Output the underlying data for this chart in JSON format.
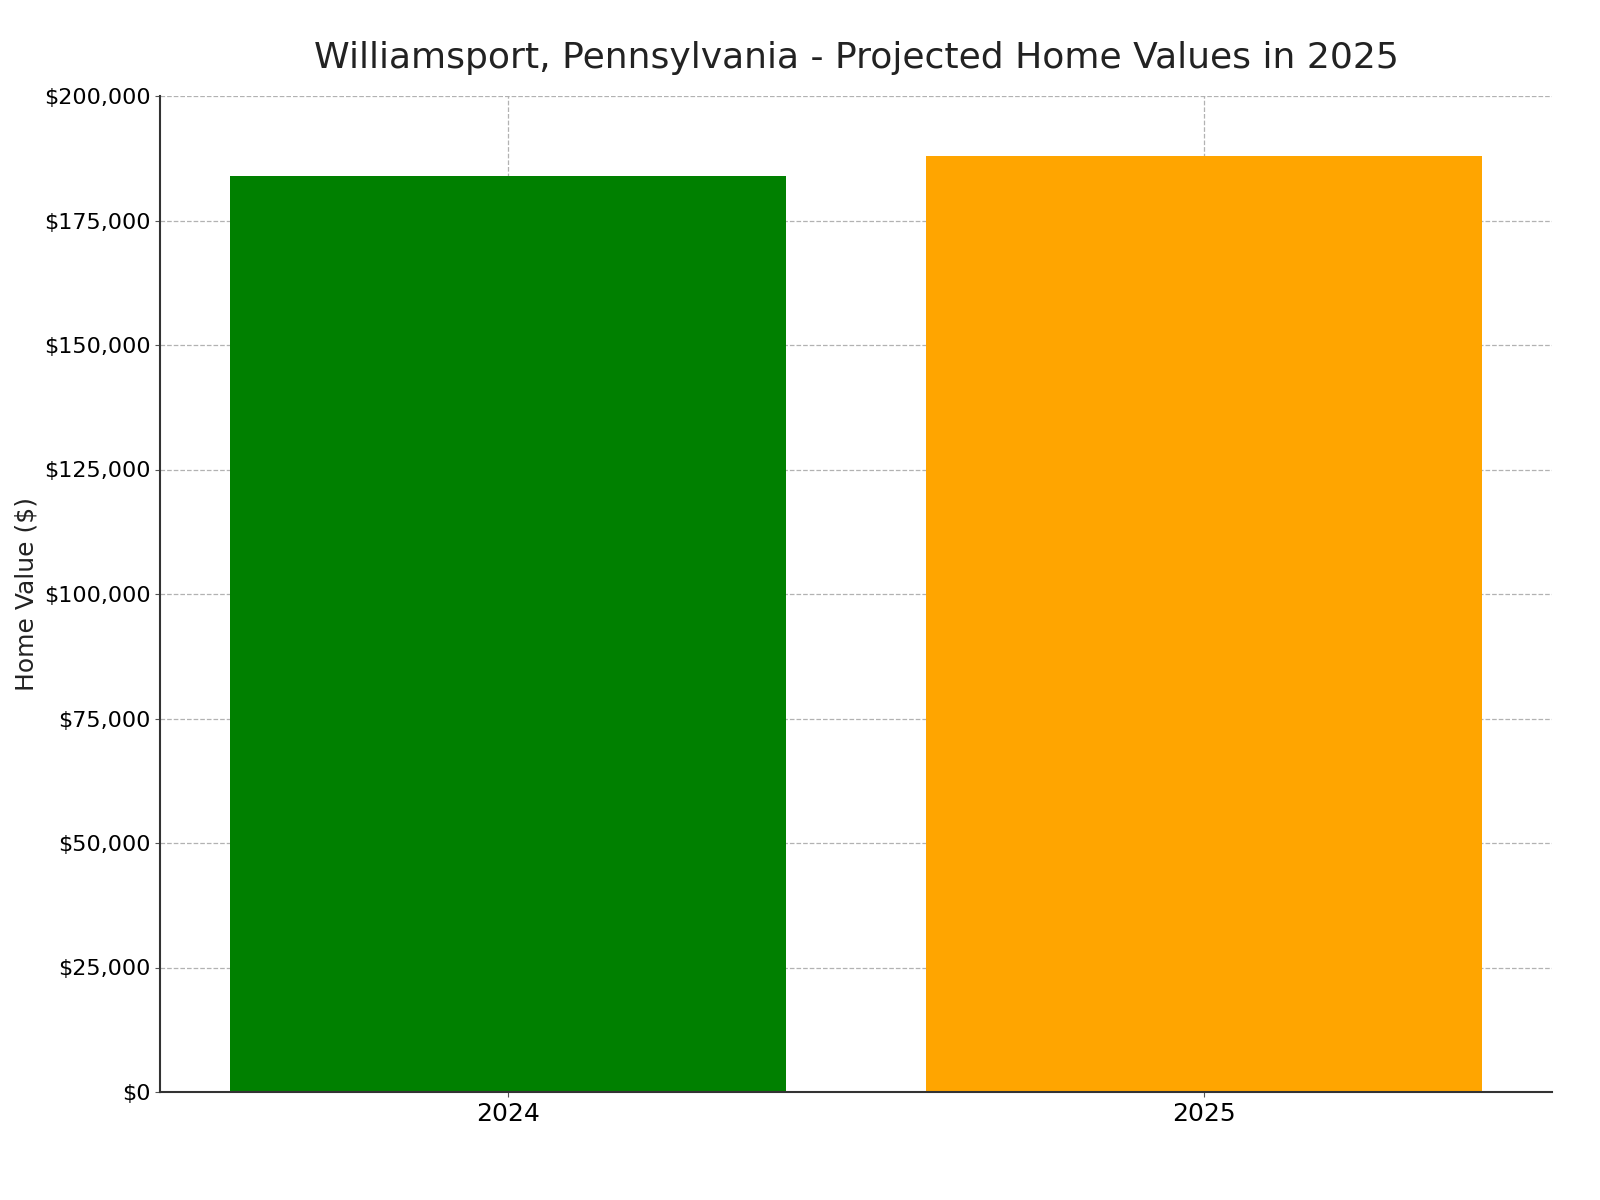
{
  "title": "Williamsport, Pennsylvania - Projected Home Values in 2025",
  "categories": [
    "2024",
    "2025"
  ],
  "values": [
    184000,
    188000
  ],
  "bar_colors": [
    "#008000",
    "#FFA500"
  ],
  "ylabel": "Home Value ($)",
  "xlabel": "",
  "ylim": [
    0,
    200000
  ],
  "yticks": [
    0,
    25000,
    50000,
    75000,
    100000,
    125000,
    150000,
    175000,
    200000
  ],
  "title_fontsize": 26,
  "axis_label_fontsize": 18,
  "tick_fontsize": 16,
  "bar_width": 0.8,
  "background_color": "#ffffff",
  "grid_color": "#aaaaaa",
  "grid_linestyle": "--",
  "grid_linewidth": 0.9
}
